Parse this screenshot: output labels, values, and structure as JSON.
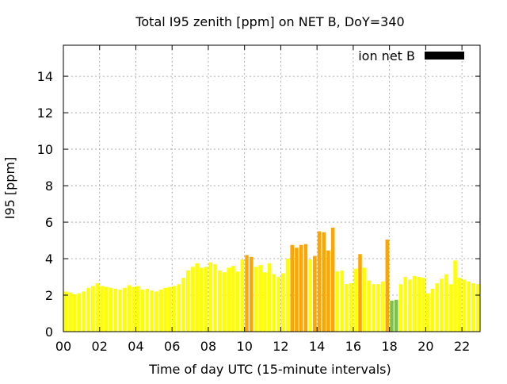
{
  "chart_data": {
    "type": "bar",
    "title": "Total I95 zenith [ppm] on NET B, DoY=340",
    "xlabel": "Time of day UTC (15-minute intervals)",
    "ylabel": "I95 [ppm]",
    "x_ticks": [
      "00",
      "02",
      "04",
      "06",
      "08",
      "10",
      "12",
      "14",
      "16",
      "18",
      "20",
      "22"
    ],
    "x_tick_hours": [
      0,
      2,
      4,
      6,
      8,
      10,
      12,
      14,
      16,
      18,
      20,
      22
    ],
    "y_ticks": [
      "0",
      "2",
      "4",
      "6",
      "8",
      "10",
      "12",
      "14"
    ],
    "y_tick_values": [
      0,
      2,
      4,
      6,
      8,
      10,
      12,
      14
    ],
    "xlim": [
      0,
      23.0
    ],
    "ylim": [
      0,
      15.7
    ],
    "grid": true,
    "legend": {
      "label": "ion net B",
      "color": "#000000",
      "placement": "top-right"
    },
    "colors": {
      "normal": "#ffff00",
      "elevated": "#ffa500",
      "low": "#7cc24a"
    },
    "bar_interval_hours": 0.25,
    "values": [
      2.2,
      2.15,
      2.05,
      2.1,
      2.2,
      2.4,
      2.5,
      2.65,
      2.5,
      2.45,
      2.4,
      2.35,
      2.3,
      2.4,
      2.55,
      2.45,
      2.5,
      2.3,
      2.35,
      2.25,
      2.2,
      2.3,
      2.4,
      2.45,
      2.5,
      2.6,
      2.95,
      3.35,
      3.55,
      3.75,
      3.5,
      3.55,
      3.8,
      3.7,
      3.35,
      3.25,
      3.5,
      3.6,
      3.3,
      3.95,
      4.2,
      4.1,
      3.55,
      3.65,
      3.25,
      3.75,
      3.15,
      3.0,
      3.2,
      4.0,
      4.75,
      4.6,
      4.75,
      4.8,
      3.95,
      4.15,
      5.5,
      5.45,
      4.45,
      5.7,
      3.3,
      3.35,
      2.6,
      2.65,
      3.45,
      4.25,
      3.5,
      2.8,
      2.6,
      2.6,
      2.75,
      5.05,
      1.7,
      1.75,
      2.6,
      3.0,
      2.85,
      3.05,
      3.0,
      2.95,
      2.1,
      2.35,
      2.65,
      2.9,
      3.15,
      2.6,
      3.9,
      2.95,
      2.85,
      2.75,
      2.65,
      2.6
    ],
    "bar_colors": [
      "normal",
      "normal",
      "normal",
      "normal",
      "normal",
      "normal",
      "normal",
      "normal",
      "normal",
      "normal",
      "normal",
      "normal",
      "normal",
      "normal",
      "normal",
      "normal",
      "normal",
      "normal",
      "normal",
      "normal",
      "normal",
      "normal",
      "normal",
      "normal",
      "normal",
      "normal",
      "normal",
      "normal",
      "normal",
      "normal",
      "normal",
      "normal",
      "normal",
      "normal",
      "normal",
      "normal",
      "normal",
      "normal",
      "normal",
      "normal",
      "elevated",
      "elevated",
      "normal",
      "normal",
      "normal",
      "normal",
      "normal",
      "normal",
      "normal",
      "normal",
      "elevated",
      "elevated",
      "elevated",
      "elevated",
      "normal",
      "elevated",
      "elevated",
      "elevated",
      "elevated",
      "elevated",
      "normal",
      "normal",
      "normal",
      "normal",
      "normal",
      "elevated",
      "normal",
      "normal",
      "normal",
      "normal",
      "normal",
      "elevated",
      "low",
      "low",
      "normal",
      "normal",
      "normal",
      "normal",
      "normal",
      "normal",
      "normal",
      "normal",
      "normal",
      "normal",
      "normal",
      "normal",
      "normal",
      "normal",
      "normal",
      "normal",
      "normal",
      "normal"
    ]
  }
}
